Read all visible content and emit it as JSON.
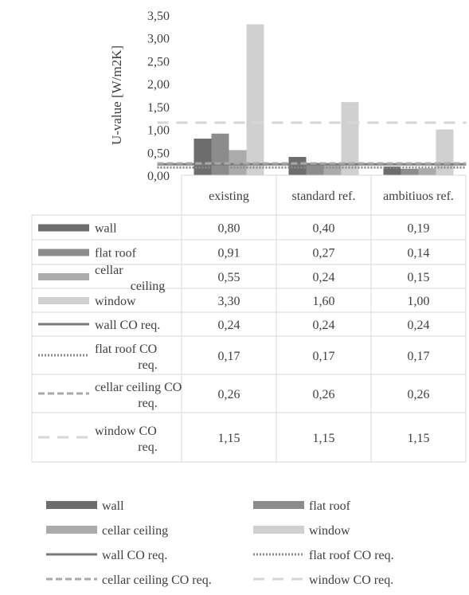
{
  "chart_data": {
    "type": "bar",
    "categories": [
      "existing",
      "standard ref.",
      "ambitiuos ref."
    ],
    "ylabel": "U-value [W/m2K]",
    "ylim": [
      0,
      3.5
    ],
    "y_ticks": [
      "0,00",
      "0,50",
      "1,00",
      "1,50",
      "2,00",
      "2,50",
      "3,00",
      "3,50"
    ],
    "gridlines": false,
    "data_table": true,
    "legend_position": "bottom",
    "series": [
      {
        "name": "wall",
        "kind": "bar",
        "color": "#6d6d6d",
        "values": [
          0.8,
          0.4,
          0.19
        ],
        "display": [
          "0,80",
          "0,40",
          "0,19"
        ]
      },
      {
        "name": "flat roof",
        "kind": "bar",
        "color": "#8c8c8c",
        "values": [
          0.91,
          0.27,
          0.14
        ],
        "display": [
          "0,91",
          "0,27",
          "0,14"
        ]
      },
      {
        "name": "cellar ceiling",
        "kind": "bar",
        "color": "#ababab",
        "values": [
          0.55,
          0.24,
          0.15
        ],
        "display": [
          "0,55",
          "0,24",
          "0,15"
        ]
      },
      {
        "name": "window",
        "kind": "bar",
        "color": "#d0d0d0",
        "values": [
          3.3,
          1.6,
          1.0
        ],
        "display": [
          "3,30",
          "1,60",
          "1,00"
        ]
      },
      {
        "name": "wall CO req.",
        "kind": "line",
        "dash": "solid",
        "color": "#7a7a7a",
        "values": [
          0.24,
          0.24,
          0.24
        ],
        "display": [
          "0,24",
          "0,24",
          "0,24"
        ]
      },
      {
        "name": "flat roof CO req.",
        "kind": "line",
        "dash": "dotted",
        "color": "#8c8c8c",
        "values": [
          0.17,
          0.17,
          0.17
        ],
        "display": [
          "0,17",
          "0,17",
          "0,17"
        ]
      },
      {
        "name": "cellar ceiling CO req.",
        "kind": "line",
        "dash": "dashed",
        "color": "#a8a8a8",
        "values": [
          0.26,
          0.26,
          0.26
        ],
        "display": [
          "0,26",
          "0,26",
          "0,26"
        ]
      },
      {
        "name": "window CO req.",
        "kind": "line",
        "dash": "longdash",
        "color": "#d6d6d6",
        "values": [
          1.15,
          1.15,
          1.15
        ],
        "display": [
          "1,15",
          "1,15",
          "1,15"
        ]
      }
    ]
  }
}
